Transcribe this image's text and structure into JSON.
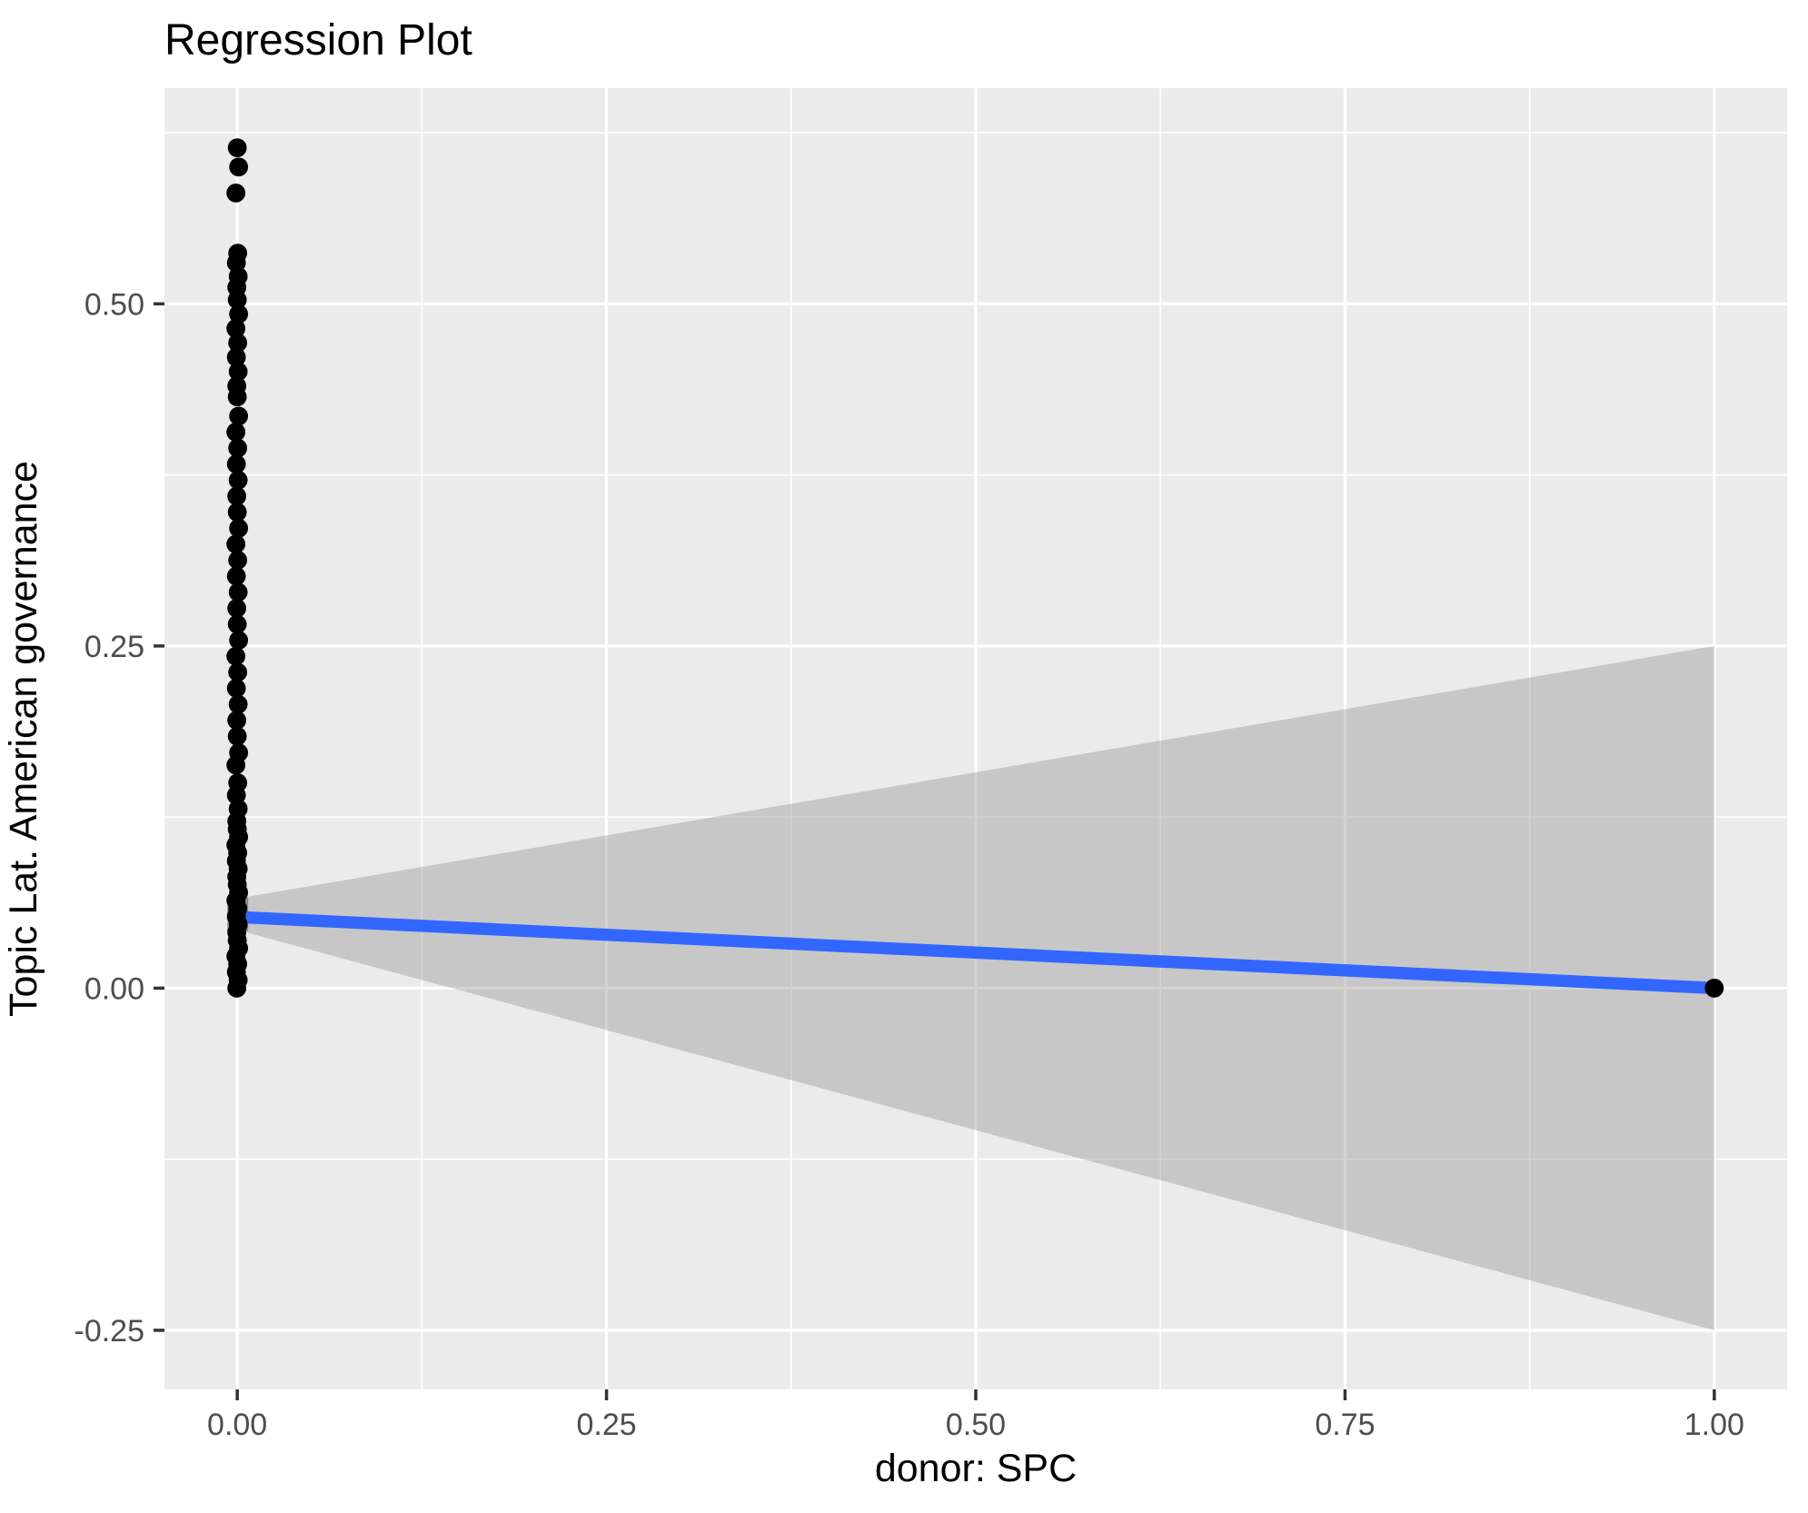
{
  "chart_data": {
    "type": "scatter",
    "title": "Regression Plot",
    "xlabel": "donor: SPC",
    "ylabel": "Topic Lat. American governance",
    "x_ticks": [
      0.0,
      0.25,
      0.5,
      0.75,
      1.0
    ],
    "x_tick_labels": [
      "0.00",
      "0.25",
      "0.50",
      "0.75",
      "1.00"
    ],
    "x_minor_ticks": [
      0.125,
      0.375,
      0.625,
      0.875
    ],
    "y_ticks": [
      -0.25,
      0.0,
      0.25,
      0.5
    ],
    "y_tick_labels": [
      "-0.25",
      "0.00",
      "0.25",
      "0.50"
    ],
    "y_minor_ticks": [
      -0.125,
      0.125,
      0.375,
      0.625
    ],
    "xlim": [
      -0.0493,
      1.0493
    ],
    "ylim": [
      -0.2932,
      0.6576
    ],
    "grid": "major+minor, white on grey panel",
    "legend": "none",
    "colors": {
      "panel_bg": "#EBEBEB",
      "grid": "#FFFFFF",
      "ribbon": "#969696",
      "ribbon_opacity": 0.42,
      "ribbon_origin_patch": "#555555",
      "regression_line": "#3366FF",
      "points": "#000000",
      "tick_text": "#4D4D4D",
      "axis_text": "#000000",
      "tick_mark": "#333333"
    },
    "regression_line": {
      "x": [
        0,
        1
      ],
      "y": [
        0.052,
        0.0
      ]
    },
    "confidence_band": {
      "x": [
        0,
        1
      ],
      "upper": [
        0.0655,
        0.25
      ],
      "lower": [
        0.0425,
        -0.25
      ]
    },
    "series": [
      {
        "name": "observations at donor=0",
        "x": 0,
        "y_values": [
          0.614,
          0.6,
          0.581,
          0.537,
          0.53,
          0.52,
          0.512,
          0.503,
          0.4925,
          0.482,
          0.4715,
          0.461,
          0.4505,
          0.44,
          0.432,
          0.418,
          0.4063,
          0.3946,
          0.3829,
          0.3712,
          0.3595,
          0.3478,
          0.3361,
          0.3244,
          0.3127,
          0.301,
          0.2893,
          0.2776,
          0.2659,
          0.2542,
          0.2425,
          0.2308,
          0.2191,
          0.2074,
          0.1957,
          0.184,
          0.172,
          0.163,
          0.15,
          0.141,
          0.131,
          0.122,
          0.1162,
          0.1104,
          0.1046,
          0.0988,
          0.093,
          0.0872,
          0.0814,
          0.0756,
          0.0698,
          0.064,
          0.0582,
          0.0524,
          0.0466,
          0.0408,
          0.035,
          0.0292,
          0.0234,
          0.0176,
          0.0118,
          0.006,
          0.0
        ]
      },
      {
        "name": "observation at donor=1",
        "x": 1,
        "y_values": [
          0.0
        ]
      }
    ]
  }
}
